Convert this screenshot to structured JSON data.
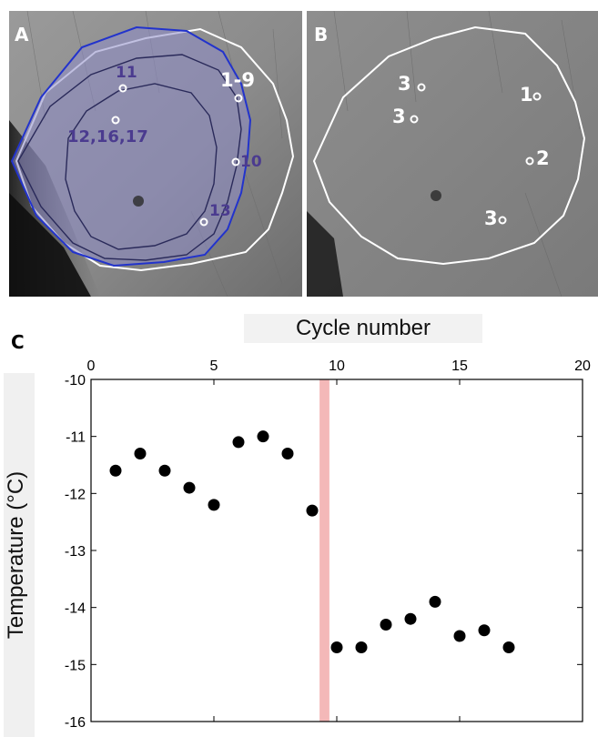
{
  "panels": {
    "a": {
      "letter": "A",
      "labels": [
        "11",
        "1-9",
        "12,16,17",
        "10",
        "13"
      ],
      "colors": {
        "outer_contour": "#ffffff",
        "blue_contour": "#2233cc",
        "dark_contours": "#2a2a5a",
        "fill": "#8e8cc8"
      }
    },
    "b": {
      "letter": "B",
      "labels": [
        "3",
        "3",
        "1",
        "2",
        "3"
      ]
    }
  },
  "chart_data": {
    "panel_letter": "C",
    "type": "scatter",
    "xlabel": "Cycle number",
    "ylabel": "Temperature (°C)",
    "x_axis_position": "top",
    "xlim": [
      0,
      20
    ],
    "ylim": [
      -16,
      -10
    ],
    "xticks": [
      "0",
      "5",
      "10",
      "15",
      "20"
    ],
    "yticks": [
      "-10",
      "-11",
      "-12",
      "-13",
      "-14",
      "-15",
      "-16"
    ],
    "series": [
      {
        "x": [
          1,
          2,
          3,
          4,
          5,
          6,
          7,
          8,
          9,
          10,
          11,
          12,
          13,
          14,
          15,
          16,
          17
        ],
        "y": [
          -11.6,
          -11.3,
          -11.6,
          -11.9,
          -12.2,
          -11.1,
          -11.0,
          -11.3,
          -12.3,
          -14.7,
          -14.7,
          -14.3,
          -14.2,
          -13.9,
          -14.5,
          -14.4,
          -14.7
        ]
      }
    ],
    "highlight_band": {
      "x": [
        9.3,
        9.7
      ],
      "color": "#f4b8b8"
    },
    "marker_color": "#000000",
    "grid": false,
    "legend": "none"
  }
}
